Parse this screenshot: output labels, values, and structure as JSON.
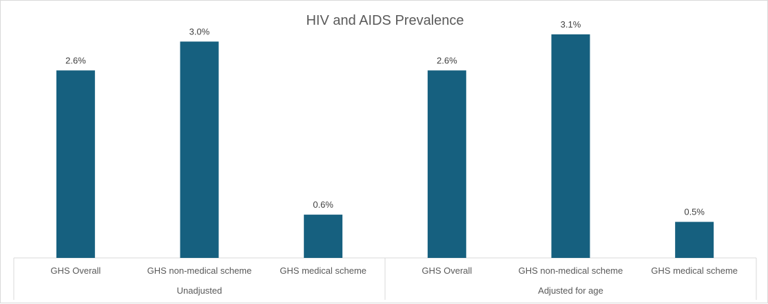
{
  "chart_data": {
    "type": "bar",
    "title": "HIV and AIDS Prevalence",
    "groups": [
      {
        "label": "Unadjusted",
        "categories": [
          "GHS Overall",
          "GHS non-medical scheme",
          "GHS medical scheme"
        ],
        "values": [
          2.6,
          3.0,
          0.6
        ],
        "value_labels": [
          "2.6%",
          "3.0%",
          "0.6%"
        ]
      },
      {
        "label": "Adjusted for age",
        "categories": [
          "GHS Overall",
          "GHS non-medical scheme",
          "GHS medical scheme"
        ],
        "values": [
          2.6,
          3.1,
          0.5
        ],
        "value_labels": [
          "2.6%",
          "3.1%",
          "0.5%"
        ]
      }
    ],
    "ylim": [
      0,
      3.5
    ],
    "bar_color": "#16607f",
    "grid": false,
    "legend": "none"
  }
}
